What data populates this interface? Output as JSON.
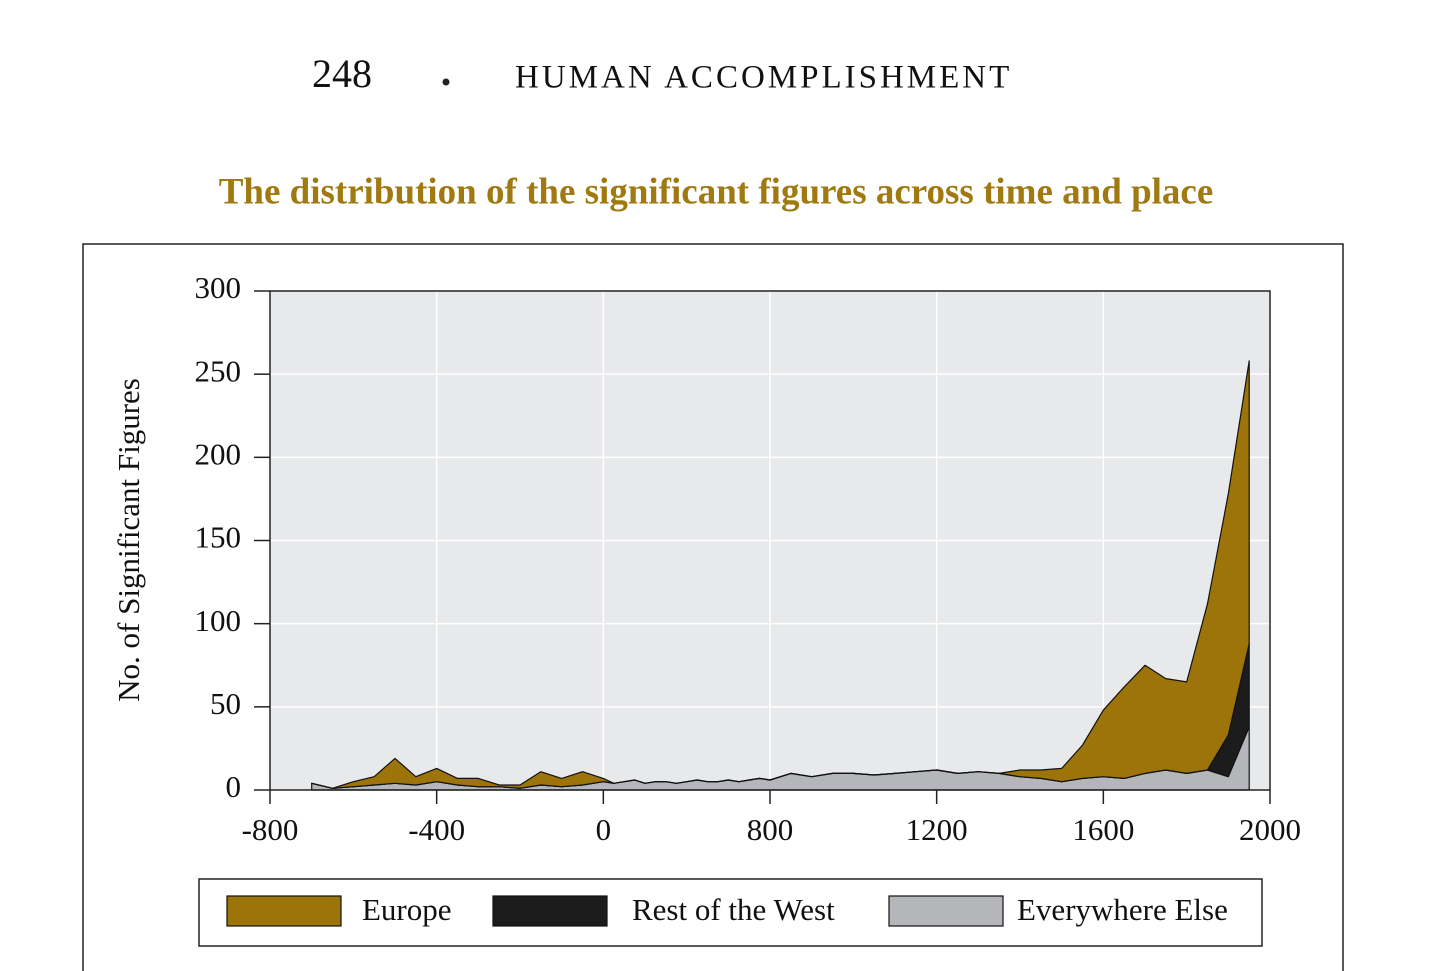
{
  "page_number": "248",
  "running_head": "HUMAN ACCOMPLISHMENT",
  "chart_data": {
    "type": "area",
    "stacked": true,
    "title": "The distribution of the significant figures across time and place",
    "y_label": "No. of Significant Figures",
    "x": [
      -700,
      -650,
      -600,
      -550,
      -500,
      -450,
      -400,
      -350,
      -300,
      -250,
      -200,
      -150,
      -100,
      -50,
      0,
      50,
      100,
      150,
      200,
      250,
      300,
      350,
      400,
      450,
      500,
      550,
      600,
      650,
      700,
      750,
      800,
      850,
      900,
      950,
      1000,
      1050,
      1100,
      1150,
      1200,
      1250,
      1300,
      1350,
      1400,
      1450,
      1500,
      1550,
      1600,
      1650,
      1700,
      1750,
      1800,
      1850,
      1900,
      1950
    ],
    "series": [
      {
        "name": "Europe",
        "color": "#9c7409",
        "values": [
          0,
          0,
          3,
          5,
          15,
          5,
          8,
          4,
          5,
          1,
          2,
          8,
          5,
          8,
          2,
          0,
          0,
          0,
          0,
          0,
          0,
          0,
          0,
          0,
          0,
          0,
          0,
          0,
          0,
          0,
          0,
          0,
          0,
          0,
          0,
          0,
          0,
          0,
          0,
          0,
          0,
          0,
          4,
          5,
          8,
          20,
          40,
          55,
          65,
          55,
          55,
          100,
          145,
          170
        ]
      },
      {
        "name": "Rest of the West",
        "color": "#1c1c1c",
        "values": [
          0,
          0,
          0,
          0,
          0,
          0,
          0,
          0,
          0,
          0,
          0,
          0,
          0,
          0,
          0,
          0,
          0,
          0,
          0,
          0,
          0,
          0,
          0,
          0,
          0,
          0,
          0,
          0,
          0,
          0,
          0,
          0,
          0,
          0,
          0,
          0,
          0,
          0,
          0,
          0,
          0,
          0,
          0,
          0,
          0,
          0,
          0,
          0,
          0,
          0,
          0,
          0,
          25,
          50
        ]
      },
      {
        "name": "Everywhere Else",
        "color": "#b5b6b9",
        "values": [
          4,
          1,
          2,
          3,
          4,
          3,
          5,
          3,
          2,
          2,
          1,
          3,
          2,
          3,
          5,
          4,
          5,
          6,
          4,
          5,
          5,
          4,
          5,
          6,
          5,
          5,
          6,
          5,
          6,
          7,
          6,
          10,
          8,
          10,
          10,
          9,
          10,
          11,
          12,
          10,
          11,
          10,
          8,
          7,
          5,
          7,
          8,
          7,
          10,
          12,
          10,
          12,
          8,
          38
        ]
      }
    ],
    "xlim": [
      -800,
      2000
    ],
    "xticks": [
      -800,
      -400,
      0,
      800,
      1200,
      1600,
      2000
    ],
    "ylim": [
      0,
      300
    ],
    "yticks": [
      0,
      50,
      100,
      150,
      200,
      250,
      300
    ],
    "grid": true,
    "legend": "bottom"
  }
}
